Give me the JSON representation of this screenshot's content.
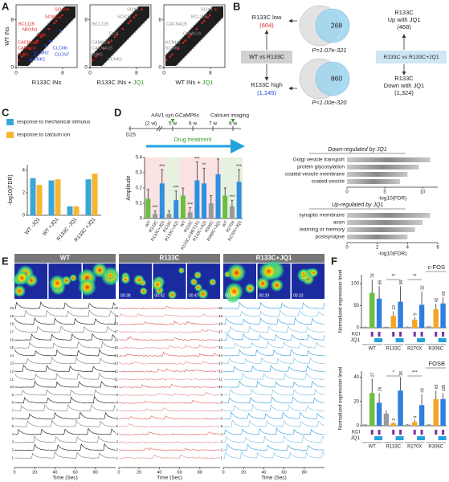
{
  "A": {
    "label": "A",
    "ylabel": "WT INs",
    "ticks": [
      0,
      8
    ],
    "plots": [
      {
        "xlabel": "R133C INs",
        "genes_up": [
          "SOX4",
          "SOX11",
          "BCL11B",
          "NRXN1",
          "DCX",
          "CACNA1B",
          "CAMK2A",
          "LHX6"
        ],
        "genes_down": [
          "CLCN6",
          "KCNH2",
          "CLCN7",
          "KCNK1"
        ]
      },
      {
        "xlabel": "R133C INs +",
        "xlabel_drug": "JQ1",
        "genes": [
          "SOX4",
          "SOX11",
          "BCL11B",
          "DCX",
          "CAMK2A",
          "CACNA1B",
          "LHX6",
          "KCNK1"
        ]
      },
      {
        "xlabel": "WT INs +",
        "xlabel_drug": "JQ1",
        "genes": [
          "SOX4",
          "BCL11B",
          "CACNA1B",
          "CAMK2A",
          "KCNH2",
          "KCNK1"
        ]
      }
    ]
  },
  "B": {
    "label": "B",
    "top": {
      "left_title": "R133C low",
      "left_count": "(604)",
      "overlap": "268",
      "p": "P=1.07e-321",
      "right_title": "R133C",
      "right_sub": "Up with JQ1",
      "right_count": "(468)"
    },
    "bottom": {
      "left_title": "R133C high",
      "left_count": "(1,145)",
      "overlap": "860",
      "p": "P<1.00e-320",
      "right_title": "R133C",
      "right_sub": "Down with JQ1",
      "right_count": "(1,324)"
    },
    "left_box": "WT vs R133C",
    "right_box": "R133C vs R133C+JQ1"
  },
  "C": {
    "label": "C",
    "ylabel": "-log10(FDR)",
    "ylim": [
      0,
      4.5
    ],
    "yticks": [
      0,
      2,
      4
    ],
    "categories": [
      "WT -JQ1",
      "WT +JQ1",
      "R133C -JQ1",
      "R133C +JQ1"
    ],
    "series": [
      {
        "name": "response to mechanical stimulus",
        "color": "#3ba7d6",
        "values": [
          3.3,
          3.1,
          0.8,
          3.2
        ]
      },
      {
        "name": "response to calcium ion",
        "color": "#f5b731",
        "values": [
          2.7,
          3.2,
          0.8,
          3.7
        ]
      }
    ]
  },
  "D": {
    "label": "D",
    "timeline": {
      "start": "D25",
      "gap": "(2 w)",
      "weeks": [
        "5 w",
        "6 w",
        "7 w",
        "8 w"
      ],
      "virus": "AAV1.syn.GCaMP6s",
      "imaging": "Calcium imaging",
      "drug": "Drug treatment"
    },
    "chart": {
      "ylabel": "Amplitude",
      "ylim": [
        0,
        0.4
      ],
      "yticks": [
        0,
        0.1,
        0.2,
        0.3,
        0.4
      ],
      "categories": [
        "WT",
        "R133C",
        "R133C+JQ1",
        "R133C",
        "R133C+JQ1",
        "WT",
        "R133C",
        "R133C+I-BET151",
        "R133C+JQ1",
        "R306C",
        "R306C+JQ1",
        "WT",
        "R270X",
        "R270X+JQ1"
      ],
      "colors": [
        "#6cbf3f",
        "#9a9a9a",
        "#2f8fe0",
        "#9a9a9a",
        "#2f8fe0",
        "#6cbf3f",
        "#9a9a9a",
        "#2f8fe0",
        "#2f8fe0",
        "#9a9a9a",
        "#2f8fe0",
        "#6cbf3f",
        "#9a9a9a",
        "#2f8fe0"
      ],
      "values": [
        0.13,
        0.03,
        0.23,
        0.03,
        0.12,
        0.15,
        0.04,
        0.25,
        0.23,
        0.1,
        0.29,
        0.15,
        0.08,
        0.24
      ],
      "errors": [
        0.06,
        0.02,
        0.09,
        0.02,
        0.06,
        0.05,
        0.03,
        0.12,
        0.1,
        0.05,
        0.1,
        0.05,
        0.04,
        0.08
      ],
      "significance": [
        "***",
        "***",
        "***",
        "***",
        "***",
        "**",
        "***",
        "***"
      ]
    },
    "down": {
      "title": "Down-regulated by JQ1",
      "terms": [
        "Golgi vesicle transport",
        "protein glycosylation",
        "coated vesicle membrane",
        "coated vesicle"
      ],
      "values": [
        11,
        9.5,
        8,
        7
      ],
      "xlim": [
        0,
        12
      ],
      "xticks": [
        0,
        5,
        10
      ],
      "xlabel": "-log10(FDR)"
    },
    "up": {
      "title": "Up-regulated by JQ1",
      "terms": [
        "synaptic membrane",
        "axon",
        "learning or memory",
        "postsynapse"
      ],
      "values": [
        5.5,
        5,
        4.5,
        4
      ],
      "xlim": [
        0,
        6
      ],
      "xticks": [
        0,
        2,
        4,
        6
      ],
      "xlabel": "-log10(FDR)"
    }
  },
  "E": {
    "label": "E",
    "groups": [
      {
        "title": "WT"
      },
      {
        "title": "R133C",
        "times": [
          "00:38",
          "00:42",
          "00:47"
        ]
      },
      {
        "title": "R133C+JQ1",
        "times": [
          "00:26",
          "00:29",
          "00:33"
        ]
      }
    ],
    "trace_numbers": [
      20,
      19,
      18,
      17,
      16,
      15,
      14,
      13,
      12,
      11,
      10,
      9,
      8,
      7,
      6,
      5,
      4,
      3,
      2,
      1
    ],
    "xlabel": "Time (Sec)",
    "xlim": [
      0,
      100
    ],
    "xticks": [
      0,
      20,
      40,
      60,
      80
    ]
  },
  "F": {
    "label": "F",
    "groups": [
      "WT",
      "R133C",
      "R270X",
      "R306C"
    ],
    "kcl": "KCl",
    "jq1": "JQ1",
    "charts": [
      {
        "title": "c-FOS",
        "ylabel": "Normalized expression level",
        "ylim": [
          0,
          120
        ],
        "yticks": [
          0,
          50,
          100
        ],
        "colors": [
          "#9a9a9a",
          "#6cbf3f",
          "#2f7fe0",
          "#9a9a9a",
          "#f5a623",
          "#2f7fe0",
          "#9a9a9a",
          "#f5a623",
          "#2f7fe0",
          "#9a9a9a",
          "#f5a623",
          "#2f7fe0"
        ],
        "values": [
          2,
          79,
          66,
          2,
          27,
          59,
          2,
          18,
          52,
          3,
          42,
          55
        ],
        "errors": [
          1,
          30,
          28,
          1,
          10,
          35,
          1,
          6,
          30,
          1,
          12,
          14
        ],
        "n_labels": [
          "79",
          "66",
          "13",
          "99",
          "9",
          "32",
          "42",
          "65"
        ],
        "significance": [
          "**",
          "**"
        ]
      },
      {
        "title": "FOSB",
        "ylabel": "Normalized expression level",
        "ylim": [
          0,
          45
        ],
        "yticks": [
          0,
          20,
          40
        ],
        "colors": [
          "#9a9a9a",
          "#6cbf3f",
          "#2f7fe0",
          "#9a9a9a",
          "#f5a623",
          "#2f7fe0",
          "#9a9a9a",
          "#f5a623",
          "#2f7fe0",
          "#9a9a9a",
          "#f5a623",
          "#2f7fe0"
        ],
        "values": [
          1,
          27,
          19,
          10,
          2,
          29,
          1,
          3,
          17,
          1,
          22,
          22
        ],
        "errors": [
          0.5,
          12,
          8,
          3,
          1,
          11,
          0.5,
          2,
          9,
          0.5,
          7,
          5
        ],
        "n_labels": [
          "27",
          "26",
          "2",
          "26",
          "4",
          "43",
          "65",
          "105"
        ],
        "significance": [
          "*",
          "***"
        ]
      }
    ]
  }
}
